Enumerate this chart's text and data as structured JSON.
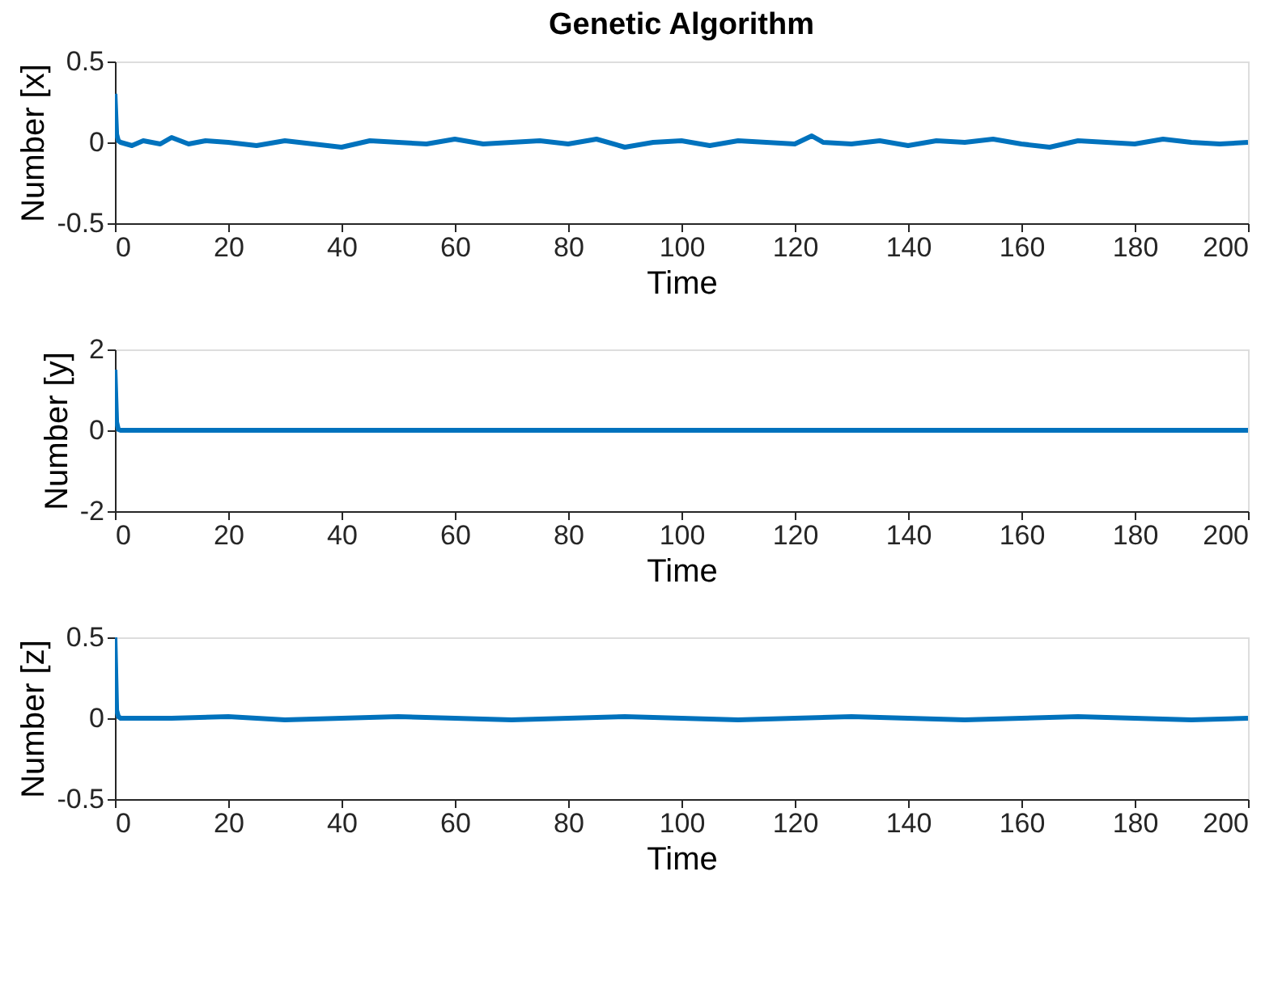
{
  "chart_data": [
    {
      "type": "line",
      "title": "Genetic Algorithm",
      "xlabel": "Time",
      "ylabel": "Number  [x]",
      "color": "#0072bd",
      "line_style": "solid",
      "grid": false,
      "xlim": [
        0,
        200
      ],
      "xticks": [
        0,
        20,
        40,
        60,
        80,
        100,
        120,
        140,
        160,
        180,
        200
      ],
      "ylim": [
        -0.5,
        0.5
      ],
      "yticks": [
        -0.5,
        0,
        0.5
      ],
      "x": [
        0,
        0.3,
        0.6,
        1,
        3,
        5,
        8,
        10,
        13,
        16,
        20,
        25,
        30,
        35,
        40,
        45,
        50,
        55,
        60,
        65,
        70,
        75,
        80,
        85,
        90,
        95,
        100,
        105,
        110,
        115,
        120,
        123,
        125,
        130,
        135,
        140,
        145,
        150,
        155,
        160,
        165,
        170,
        175,
        180,
        185,
        190,
        195,
        200
      ],
      "values": [
        0.3,
        0.05,
        0.01,
        0.0,
        -0.02,
        0.01,
        -0.01,
        0.03,
        -0.01,
        0.01,
        0.0,
        -0.02,
        0.01,
        -0.01,
        -0.03,
        0.01,
        0.0,
        -0.01,
        0.02,
        -0.01,
        0.0,
        0.01,
        -0.01,
        0.02,
        -0.03,
        0.0,
        0.01,
        -0.02,
        0.01,
        0.0,
        -0.01,
        0.04,
        0.0,
        -0.01,
        0.01,
        -0.02,
        0.01,
        0.0,
        0.02,
        -0.01,
        -0.03,
        0.01,
        0.0,
        -0.01,
        0.02,
        0.0,
        -0.01,
        0.0
      ]
    },
    {
      "type": "line",
      "xlabel": "Time",
      "ylabel": "Number  [y]",
      "color": "#0072bd",
      "line_style": "solid",
      "grid": false,
      "xlim": [
        0,
        200
      ],
      "xticks": [
        0,
        20,
        40,
        60,
        80,
        100,
        120,
        140,
        160,
        180,
        200
      ],
      "ylim": [
        -2,
        2
      ],
      "yticks": [
        -2,
        0,
        2
      ],
      "x": [
        0,
        0.3,
        0.6,
        1,
        10,
        30,
        50,
        70,
        90,
        110,
        130,
        150,
        170,
        190,
        200
      ],
      "values": [
        1.5,
        0.2,
        0.02,
        0.0,
        0.0,
        0.0,
        0.0,
        0.0,
        0.0,
        0.0,
        0.0,
        0.0,
        0.0,
        0.0,
        0.0
      ]
    },
    {
      "type": "line",
      "xlabel": "Time",
      "ylabel": "Number  [z]",
      "color": "#0072bd",
      "line_style": "solid",
      "grid": false,
      "xlim": [
        0,
        200
      ],
      "xticks": [
        0,
        20,
        40,
        60,
        80,
        100,
        120,
        140,
        160,
        180,
        200
      ],
      "ylim": [
        -0.5,
        0.5
      ],
      "yticks": [
        -0.5,
        0,
        0.5
      ],
      "x": [
        0,
        0.3,
        0.6,
        1,
        10,
        20,
        30,
        40,
        50,
        60,
        70,
        80,
        90,
        100,
        110,
        120,
        130,
        140,
        150,
        160,
        170,
        180,
        190,
        200
      ],
      "values": [
        0.5,
        0.05,
        0.01,
        0.0,
        0.0,
        0.01,
        -0.01,
        0.0,
        0.01,
        0.0,
        -0.01,
        0.0,
        0.01,
        0.0,
        -0.01,
        0.0,
        0.01,
        0.0,
        -0.01,
        0.0,
        0.01,
        0.0,
        -0.01,
        0.0
      ]
    }
  ]
}
